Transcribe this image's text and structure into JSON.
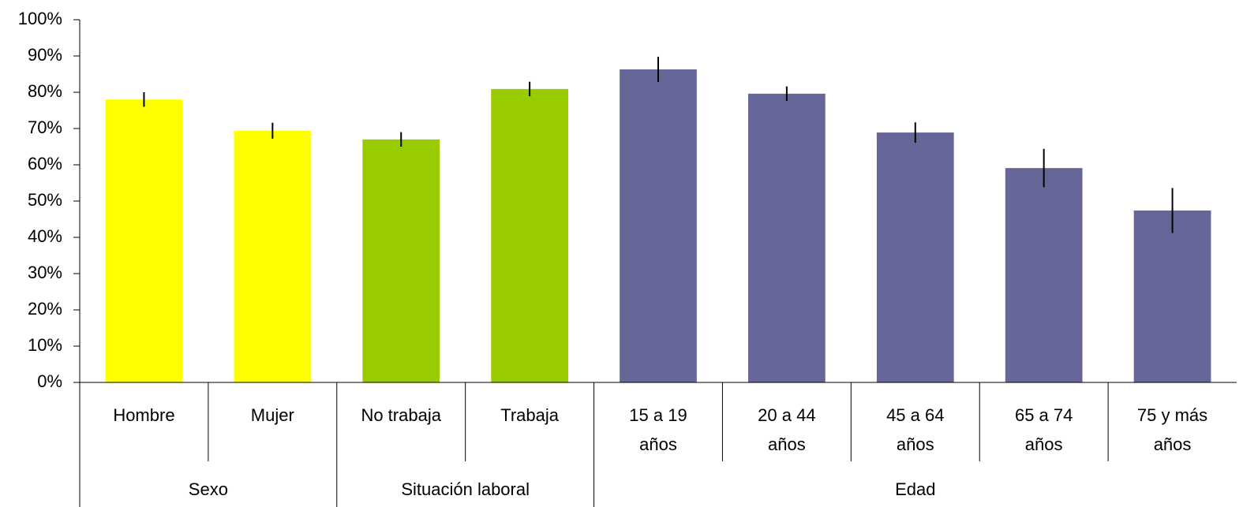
{
  "chart_data": {
    "type": "bar",
    "ylim": [
      0,
      100
    ],
    "yticks": [
      {
        "value": 0,
        "label": "0%"
      },
      {
        "value": 10,
        "label": "10%"
      },
      {
        "value": 20,
        "label": "20%"
      },
      {
        "value": 30,
        "label": "30%"
      },
      {
        "value": 40,
        "label": "40%"
      },
      {
        "value": 50,
        "label": "50%"
      },
      {
        "value": 60,
        "label": "60%"
      },
      {
        "value": 70,
        "label": "70%"
      },
      {
        "value": 80,
        "label": "80%"
      },
      {
        "value": 90,
        "label": "90%"
      },
      {
        "value": 100,
        "label": "100%"
      }
    ],
    "groups": [
      {
        "name": "Sexo",
        "color": "#ffff00",
        "categories": [
          "Hombre",
          "Mujer"
        ],
        "values": [
          78,
          69.4
        ],
        "errors": [
          2,
          2.2
        ]
      },
      {
        "name": "Situación laboral",
        "color": "#99cc00",
        "categories": [
          "No trabaja",
          "Trabaja"
        ],
        "values": [
          67,
          80.9
        ],
        "errors": [
          2,
          2
        ]
      },
      {
        "name": "Edad",
        "color": "#666699",
        "categories": [
          "15 a 19\naños",
          "20 a 44\naños",
          "45 a 64\naños",
          "65 a 74\naños",
          "75 y más\naños"
        ],
        "values": [
          86.3,
          79.6,
          68.9,
          59.1,
          47.4
        ],
        "errors": [
          3.5,
          2,
          2.8,
          5.3,
          6.2
        ]
      }
    ]
  }
}
